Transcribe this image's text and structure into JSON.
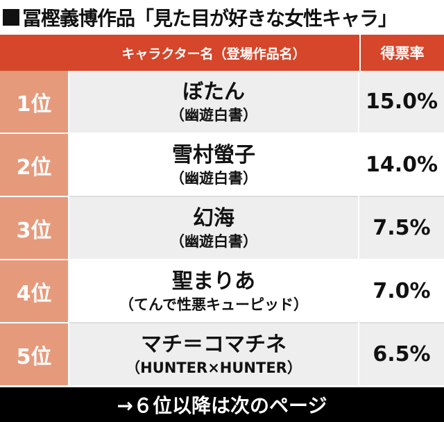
{
  "title": "冨樫義博作品「見た目が好きな女性キャラ」",
  "header": {
    "name_col": "キャラクター名（登場作品名）",
    "rate_col": "得票率"
  },
  "rows": [
    {
      "rank": "1位",
      "name": "ぼたん",
      "work": "（幽遊白書）",
      "rate": "15.0%"
    },
    {
      "rank": "2位",
      "name": "雪村螢子",
      "work": "（幽遊白書）",
      "rate": "14.0%"
    },
    {
      "rank": "3位",
      "name": "幻海",
      "work": "（幽遊白書）",
      "rate": "7.5%"
    },
    {
      "rank": "4位",
      "name": "聖まりあ",
      "work": "（てんで性悪キューピッド）",
      "rate": "7.0%"
    },
    {
      "rank": "5位",
      "name": "マチ＝コマチネ",
      "work": "（HUNTER×HUNTER）",
      "rate": "6.5%"
    }
  ],
  "footer": "→６位以降は次のページ",
  "colors": {
    "header_bg": "#d5462a",
    "rank_bg": "#e69a7c",
    "footer_bg": "#000000"
  }
}
